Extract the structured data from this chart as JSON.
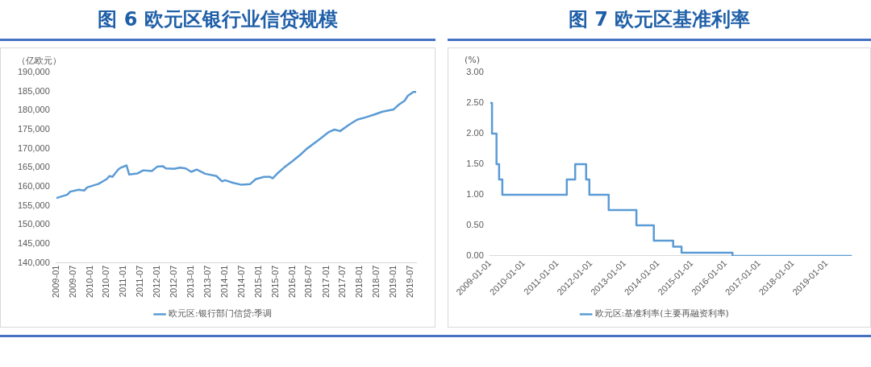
{
  "chart_data": [
    {
      "type": "line",
      "title": "图 6 欧元区银行业信贷规模",
      "ylabel": "（亿欧元）",
      "marker": "none",
      "legend": "bottom",
      "x": [
        "2009-01",
        "2009-05",
        "2009-06",
        "2009-09",
        "2009-11",
        "2009-12",
        "2010-03",
        "2010-04",
        "2010-07",
        "2010-08",
        "2010-09",
        "2010-11",
        "2010-12",
        "2011-02",
        "2011-03",
        "2011-06",
        "2011-08",
        "2011-11",
        "2012-01",
        "2012-03",
        "2012-04",
        "2012-07",
        "2012-09",
        "2012-11",
        "2013-01",
        "2013-03",
        "2013-06",
        "2013-10",
        "2013-12",
        "2014-01",
        "2014-04",
        "2014-07",
        "2014-10",
        "2014-12",
        "2015-03",
        "2015-05",
        "2015-06",
        "2015-08",
        "2015-10",
        "2016-01",
        "2016-04",
        "2016-06",
        "2016-10",
        "2017-02",
        "2017-04",
        "2017-06",
        "2017-09",
        "2017-12",
        "2018-03",
        "2018-06",
        "2018-09",
        "2019-01",
        "2019-03",
        "2019-05",
        "2019-06",
        "2019-08",
        "2019-09"
      ],
      "series": [
        {
          "name": "欧元区:银行部门信贷:季调",
          "color": "#5b9bd5",
          "values": [
            157000,
            157900,
            158700,
            159200,
            159000,
            159800,
            160500,
            160700,
            162000,
            162800,
            162600,
            164500,
            165000,
            165600,
            163200,
            163500,
            164300,
            164100,
            165300,
            165400,
            164800,
            164700,
            165000,
            164800,
            163900,
            164500,
            163400,
            162800,
            161400,
            161700,
            161000,
            160500,
            160700,
            162000,
            162600,
            162600,
            162200,
            163700,
            165000,
            166700,
            168500,
            169900,
            172100,
            174400,
            175000,
            174600,
            176200,
            177600,
            178200,
            178900,
            179700,
            180300,
            181600,
            182600,
            183800,
            184900,
            184900
          ]
        }
      ],
      "xlim": [
        "2009-01",
        "2019-09"
      ],
      "xticks": [
        "2009-01",
        "2009-07",
        "2010-01",
        "2010-07",
        "2011-01",
        "2011-07",
        "2012-01",
        "2012-07",
        "2013-01",
        "2013-07",
        "2014-01",
        "2014-07",
        "2015-01",
        "2015-07",
        "2016-01",
        "2016-07",
        "2017-01",
        "2017-07",
        "2018-01",
        "2018-07",
        "2019-01",
        "2019-07"
      ],
      "ylim": [
        140000,
        190000
      ],
      "yticks": [
        {
          "value": 140000,
          "label": "140,000"
        },
        {
          "value": 145000,
          "label": "145,000"
        },
        {
          "value": 150000,
          "label": "150,000"
        },
        {
          "value": 155000,
          "label": "155,000"
        },
        {
          "value": 160000,
          "label": "160,000"
        },
        {
          "value": 165000,
          "label": "165,000"
        },
        {
          "value": 170000,
          "label": "170,000"
        },
        {
          "value": 175000,
          "label": "175,000"
        },
        {
          "value": 180000,
          "label": "180,000"
        },
        {
          "value": 185000,
          "label": "185,000"
        },
        {
          "value": 190000,
          "label": "190,000"
        }
      ]
    },
    {
      "type": "step",
      "title": "图 7 欧元区基准利率",
      "ylabel": "(%)",
      "marker": "none",
      "legend": "bottom",
      "x": [
        "2009-01-01",
        "2009-01-21",
        "2009-03-11",
        "2009-04-08",
        "2009-05-13",
        "2011-04-13",
        "2011-07-13",
        "2011-11-09",
        "2011-12-14",
        "2012-07-11",
        "2013-05-08",
        "2013-11-13",
        "2014-06-11",
        "2014-09-10",
        "2016-03-16",
        "2019-10-01"
      ],
      "series": [
        {
          "name": "欧元区:基准利率(主要再融资利率)",
          "color": "#5b9bd5",
          "values": [
            2.5,
            2.0,
            1.5,
            1.25,
            1.0,
            1.25,
            1.5,
            1.25,
            1.0,
            0.75,
            0.5,
            0.25,
            0.15,
            0.05,
            0.0,
            0.0
          ]
        }
      ],
      "xlim": [
        "2009-01-01",
        "2019-10-01"
      ],
      "xticks": [
        "2009-01-01",
        "2010-01-01",
        "2011-01-01",
        "2012-01-01",
        "2013-01-01",
        "2014-01-01",
        "2015-01-01",
        "2016-01-01",
        "2017-01-01",
        "2018-01-01",
        "2019-01-01"
      ],
      "ylim": [
        0,
        3
      ],
      "yticks": [
        {
          "value": 0,
          "label": "0.00"
        },
        {
          "value": 0.5,
          "label": "0.50"
        },
        {
          "value": 1,
          "label": "1.00"
        },
        {
          "value": 1.5,
          "label": "1.50"
        },
        {
          "value": 2,
          "label": "2.00"
        },
        {
          "value": 2.5,
          "label": "2.50"
        },
        {
          "value": 3,
          "label": "3.00"
        }
      ]
    }
  ]
}
